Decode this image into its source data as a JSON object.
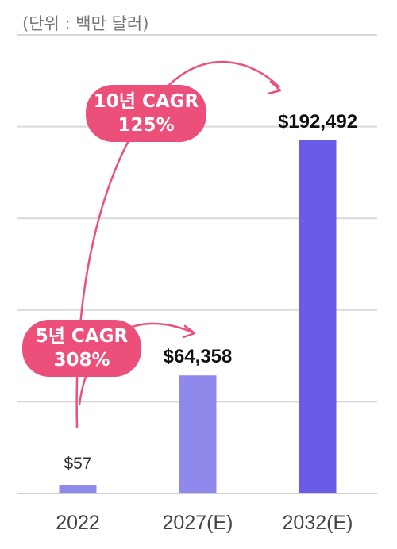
{
  "unit_label": "(단위 : 백만 달러)",
  "chart_data": {
    "type": "bar",
    "categories": [
      "2022",
      "2027(E)",
      "2032(E)"
    ],
    "values": [
      57,
      64358,
      192492
    ],
    "value_labels": [
      "$57",
      "$64,358",
      "$192,492"
    ],
    "ylim": [
      0,
      250000
    ],
    "grid": true,
    "title": "",
    "xlabel": "",
    "ylabel": "",
    "colors": [
      "#8f89ec",
      "#8f89ec",
      "#6a5ce6"
    ],
    "annotations": [
      {
        "id": "cagr_10y",
        "line1": "10년 CAGR",
        "line2": "125%",
        "from": "2022",
        "to": "2032(E)"
      },
      {
        "id": "cagr_5y",
        "line1": "5년 CAGR",
        "line2": "308%",
        "from": "2022",
        "to": "2027(E)"
      }
    ]
  },
  "colors": {
    "annotation": "#ec4f7a",
    "grid": "#d9d9d9",
    "value_text": "#111111",
    "small_value_text": "#333333",
    "tick_text": "#444444"
  }
}
